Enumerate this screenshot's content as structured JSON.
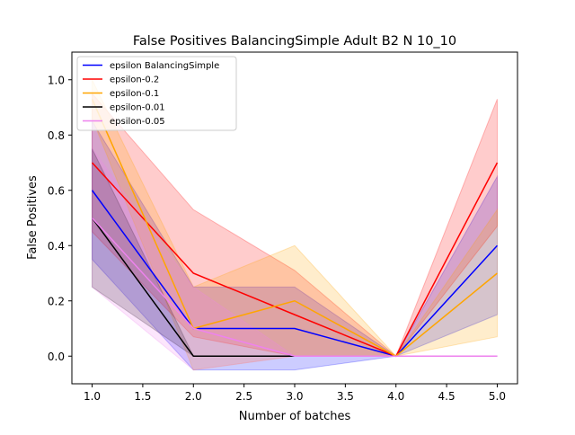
{
  "chart_data": {
    "type": "line",
    "title": "False Positives BalancingSimple Adult B2 N 10_10",
    "xlabel": "Number of batches",
    "ylabel": "False Positives",
    "xlim": [
      0.8,
      5.2
    ],
    "ylim": [
      -0.1,
      1.1
    ],
    "x_ticks": [
      "1.0",
      "1.5",
      "2.0",
      "2.5",
      "3.0",
      "3.5",
      "4.0",
      "4.5",
      "5.0"
    ],
    "y_ticks": [
      "0.0",
      "0.2",
      "0.4",
      "0.6",
      "0.8",
      "1.0"
    ],
    "grid": false,
    "legend_position": "top-left",
    "x": [
      1,
      2,
      3,
      4,
      5
    ],
    "series": [
      {
        "name": "epsilon BalancingSimple",
        "color": "#0000ff",
        "values": [
          0.6,
          0.1,
          0.1,
          0.0,
          0.4
        ],
        "lower": [
          0.35,
          -0.05,
          -0.05,
          0.0,
          0.15
        ],
        "upper": [
          0.85,
          0.25,
          0.25,
          0.0,
          0.65
        ]
      },
      {
        "name": "epsilon-0.2",
        "color": "#ff0000",
        "values": [
          0.7,
          0.3,
          0.15,
          0.0,
          0.7
        ],
        "lower": [
          0.45,
          0.07,
          0.0,
          0.0,
          0.47
        ],
        "upper": [
          0.95,
          0.53,
          0.31,
          0.0,
          0.93
        ]
      },
      {
        "name": "epsilon-0.1",
        "color": "#ffa500",
        "values": [
          0.93,
          0.1,
          0.2,
          0.0,
          0.3
        ],
        "lower": [
          0.86,
          -0.05,
          0.0,
          0.0,
          0.07
        ],
        "upper": [
          1.0,
          0.25,
          0.4,
          0.0,
          0.53
        ]
      },
      {
        "name": "epsilon-0.01",
        "color": "#000000",
        "values": [
          0.5,
          0.0,
          0.0,
          0.0,
          0.0
        ],
        "lower": [
          0.25,
          0.0,
          0.0,
          0.0,
          0.0
        ],
        "upper": [
          0.75,
          0.0,
          0.0,
          0.0,
          0.0
        ]
      },
      {
        "name": "epsilon-0.05",
        "color": "#ee82ee",
        "values": [
          0.5,
          0.1,
          0.0,
          0.0,
          0.0
        ],
        "lower": [
          0.25,
          -0.05,
          0.0,
          0.0,
          0.0
        ],
        "upper": [
          0.75,
          0.25,
          0.0,
          0.0,
          0.0
        ]
      }
    ]
  }
}
